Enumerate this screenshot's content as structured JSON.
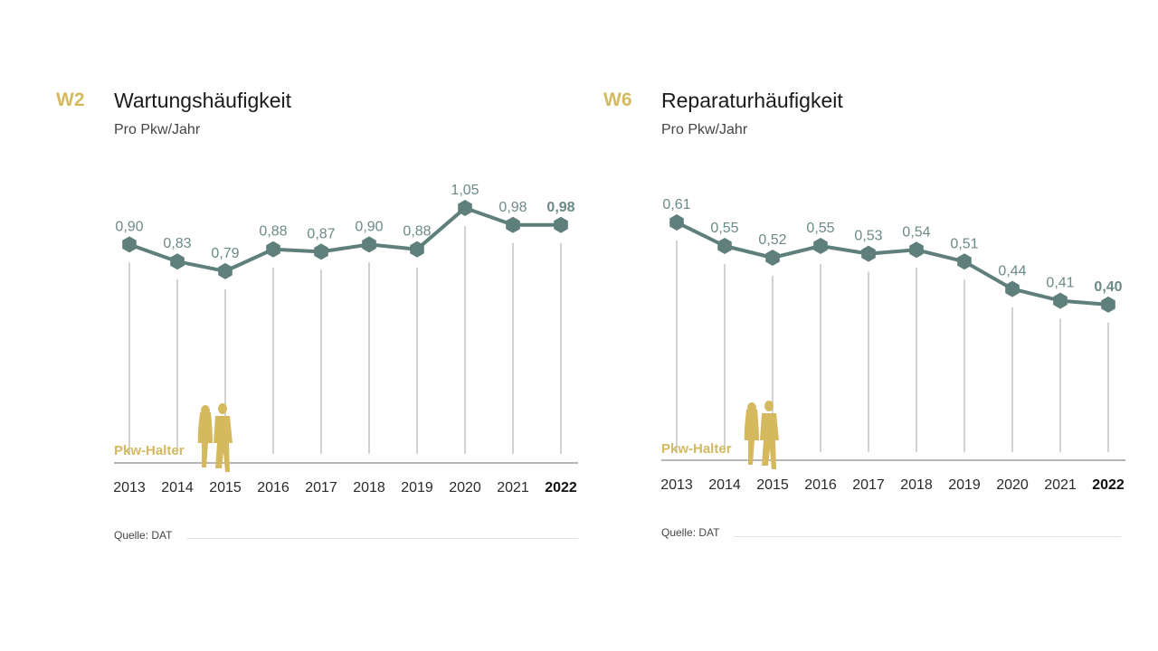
{
  "colors": {
    "accent": "#d4b95e",
    "series": "#5e7f7b",
    "gridline": "#b5b5b5",
    "baseline": "#8a8a8a"
  },
  "chart_data": [
    {
      "type": "line",
      "code": "W2",
      "title": "Wartungshäufigkeit",
      "subtitle": "Pro Pkw/Jahr",
      "categories": [
        "2013",
        "2014",
        "2015",
        "2016",
        "2017",
        "2018",
        "2019",
        "2020",
        "2021",
        "2022"
      ],
      "values": [
        0.9,
        0.83,
        0.79,
        0.88,
        0.87,
        0.9,
        0.88,
        1.05,
        0.98,
        0.98
      ],
      "value_labels": [
        "0,90",
        "0,83",
        "0,79",
        "0,88",
        "0,87",
        "0,90",
        "0,88",
        "1,05",
        "0,98",
        "0,98"
      ],
      "highlight_last": true,
      "legend_label": "Pkw-Halter",
      "source": "Quelle: DAT",
      "xlabel": "",
      "ylabel": "",
      "grid": false
    },
    {
      "type": "line",
      "code": "W6",
      "title": "Reparaturhäufigkeit",
      "subtitle": "Pro Pkw/Jahr",
      "categories": [
        "2013",
        "2014",
        "2015",
        "2016",
        "2017",
        "2018",
        "2019",
        "2020",
        "2021",
        "2022"
      ],
      "values": [
        0.61,
        0.55,
        0.52,
        0.55,
        0.53,
        0.54,
        0.51,
        0.44,
        0.41,
        0.4
      ],
      "value_labels": [
        "0,61",
        "0,55",
        "0,52",
        "0,55",
        "0,53",
        "0,54",
        "0,51",
        "0,44",
        "0,41",
        "0,40"
      ],
      "highlight_last": true,
      "legend_label": "Pkw-Halter",
      "source": "Quelle: DAT",
      "xlabel": "",
      "ylabel": "",
      "grid": false
    }
  ]
}
